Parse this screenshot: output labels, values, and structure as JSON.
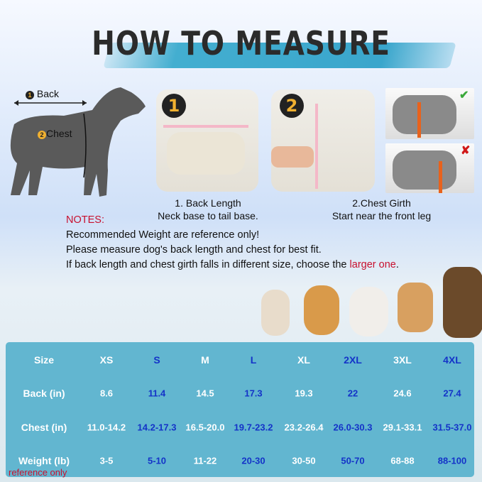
{
  "title": "HOW TO MEASURE",
  "diagram": {
    "back_label": "Back",
    "back_num": "1",
    "chest_label": "Chest",
    "chest_num": "2"
  },
  "steps": [
    {
      "badge": "1",
      "title": "1. Back Length",
      "desc": "Neck base to tail base."
    },
    {
      "badge": "2",
      "title": "2.Chest Girth",
      "desc": "Start near the front leg"
    }
  ],
  "examples": [
    {
      "status": "correct",
      "icon": "check-icon"
    },
    {
      "status": "incorrect",
      "icon": "x-icon"
    }
  ],
  "notes": {
    "heading": "NOTES:",
    "lines": [
      "Recommended Weight are reference only!",
      "Please measure dog's back length and chest for best fit."
    ],
    "line3_prefix": "If back length and chest girth falls in different size, choose the ",
    "line3_highlight": "larger one",
    "line3_suffix": "."
  },
  "table": {
    "rows": [
      {
        "label": "Size",
        "values": [
          "XS",
          "S",
          "M",
          "L",
          "XL",
          "2XL",
          "3XL",
          "4XL"
        ]
      },
      {
        "label": "Back  (in)",
        "values": [
          "8.6",
          "11.4",
          "14.5",
          "17.3",
          "19.3",
          "22",
          "24.6",
          "27.4"
        ]
      },
      {
        "label": "Chest  (in)",
        "values": [
          "11.0-14.2",
          "14.2-17.3",
          "16.5-20.0",
          "19.7-23.2",
          "23.2-26.4",
          "26.0-30.3",
          "29.1-33.1",
          "31.5-37.0"
        ]
      },
      {
        "label": "Weight  (lb)",
        "values": [
          "3-5",
          "5-10",
          "11-22",
          "20-30",
          "30-50",
          "50-70",
          "68-88",
          "88-100"
        ]
      }
    ],
    "footnote": "reference only"
  },
  "colors": {
    "table_bg": "#62b6d0",
    "alt_text": "#1433c8",
    "note_red": "#c8102e",
    "brush": "#3aa6cc"
  }
}
